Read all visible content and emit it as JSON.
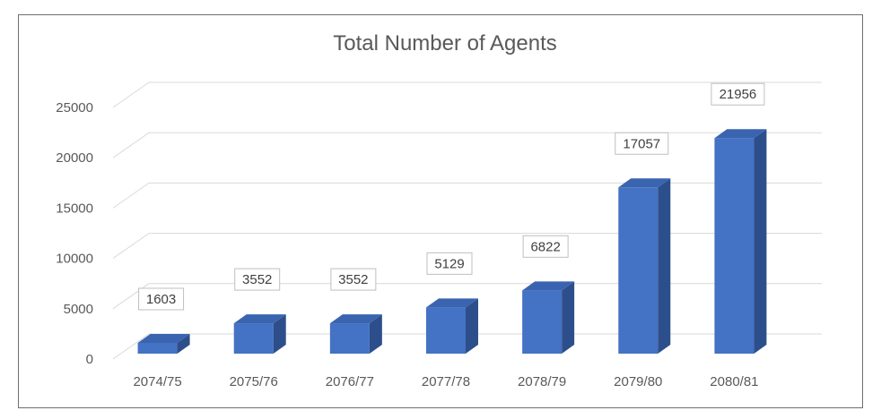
{
  "chart_data": {
    "type": "bar",
    "title": "Total Number of Agents",
    "xlabel": "",
    "ylabel": "",
    "categories": [
      "2074/75",
      "2075/76",
      "2076/77",
      "2077/78",
      "2078/79",
      "2079/80",
      "2080/81"
    ],
    "values": [
      1603,
      3552,
      3552,
      5129,
      6822,
      17057,
      21956
    ],
    "ylim": [
      0,
      25000
    ],
    "yticks": [
      "0",
      "5000",
      "10000",
      "15000",
      "20000",
      "25000"
    ],
    "grid": true,
    "style": "3d-column",
    "colors": {
      "bar_front": "#4472c4",
      "bar_side": "#2c4f8c",
      "bar_top": "#3a64b0",
      "grid": "#d9d9d9",
      "label_border": "#bfbfbf"
    }
  }
}
